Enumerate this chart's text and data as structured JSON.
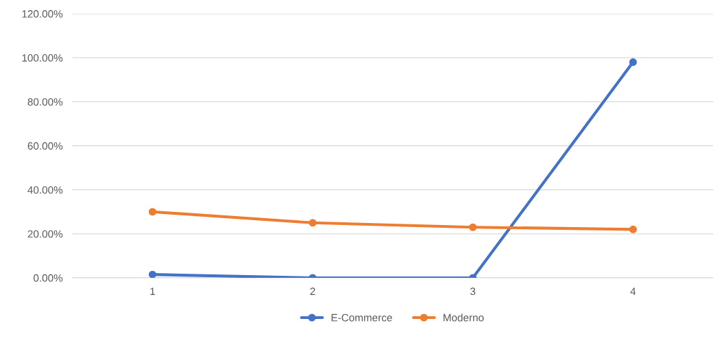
{
  "chart_data": {
    "type": "line",
    "categories": [
      "1",
      "2",
      "3",
      "4"
    ],
    "series": [
      {
        "name": "E-Commerce",
        "color": "#4472c4",
        "values": [
          1.5,
          0,
          0,
          98
        ]
      },
      {
        "name": "Moderno",
        "color": "#ed7d31",
        "values": [
          30,
          25,
          23,
          22
        ]
      }
    ],
    "ylim": [
      0,
      120
    ],
    "yticks": [
      {
        "value": 0,
        "label": "0.00%"
      },
      {
        "value": 20,
        "label": "20.00%"
      },
      {
        "value": 40,
        "label": "40.00%"
      },
      {
        "value": 60,
        "label": "60.00%"
      },
      {
        "value": 80,
        "label": "80.00%"
      },
      {
        "value": 100,
        "label": "100.00%"
      },
      {
        "value": 120,
        "label": "120.00%"
      }
    ],
    "grid": "y",
    "legend": "bottom",
    "marker": "circle",
    "line_style": "solid"
  }
}
